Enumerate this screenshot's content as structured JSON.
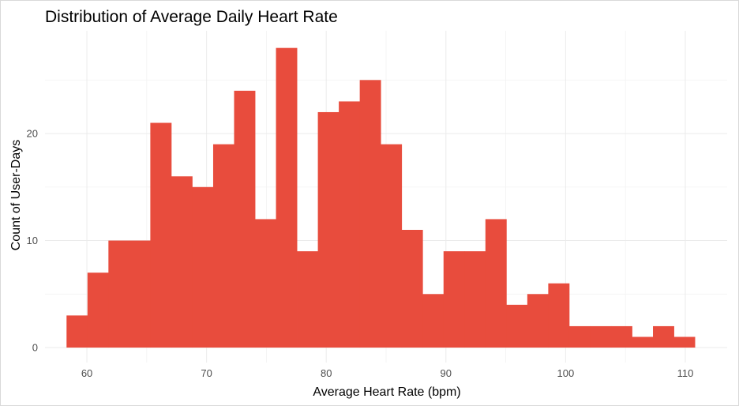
{
  "chart_data": {
    "type": "bar",
    "subtype": "histogram",
    "title": "Distribution of Average Daily Heart Rate",
    "xlabel": "Average Heart Rate (bpm)",
    "ylabel": "Count of User-Days",
    "xlim": [
      56.5,
      113.5
    ],
    "ylim": [
      -1.4,
      29.6
    ],
    "x_ticks": [
      60,
      70,
      80,
      90,
      100,
      110
    ],
    "x_tick_labels": [
      "60",
      "70",
      "80",
      "90",
      "100",
      "110"
    ],
    "y_ticks": [
      0,
      10,
      20
    ],
    "y_tick_labels": [
      "0",
      "10",
      "20"
    ],
    "grid": true,
    "legend": "none",
    "bar_color": "#E84C3D",
    "bin_edges": [
      58.3,
      60.05,
      61.8,
      63.55,
      65.3,
      67.05,
      68.8,
      70.55,
      72.3,
      74.05,
      75.8,
      77.55,
      79.3,
      81.05,
      82.8,
      84.55,
      86.3,
      88.05,
      89.8,
      91.55,
      93.3,
      95.05,
      96.8,
      98.55,
      100.3,
      102.05,
      103.8,
      105.55,
      107.3,
      109.05,
      110.8
    ],
    "counts": [
      3,
      7,
      10,
      10,
      21,
      16,
      15,
      19,
      24,
      12,
      28,
      9,
      22,
      23,
      25,
      19,
      11,
      5,
      9,
      9,
      12,
      4,
      5,
      6,
      2,
      2,
      2,
      1,
      2,
      1
    ]
  }
}
